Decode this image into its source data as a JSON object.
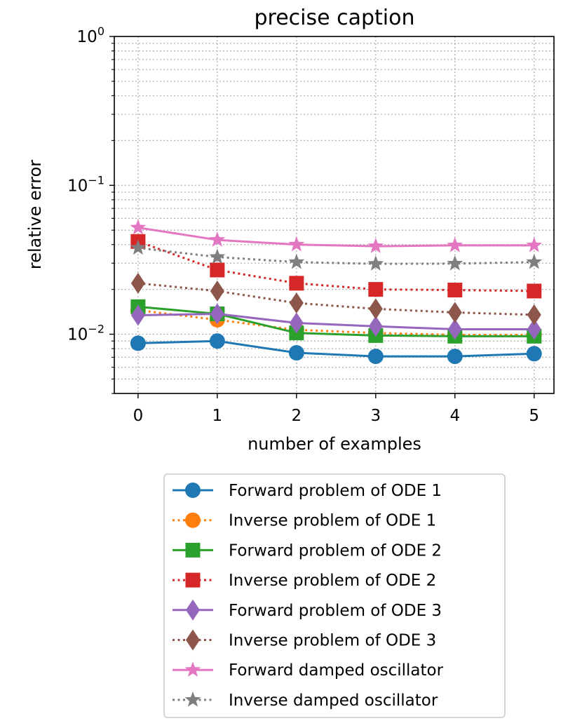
{
  "chart_data": {
    "type": "line",
    "title": "precise caption",
    "xlabel": "number of examples",
    "ylabel": "relative error",
    "yscale": "log",
    "ylim": [
      0.004,
      1.0
    ],
    "xlim": [
      -0.3,
      5.25
    ],
    "grid": true,
    "legend_position": "below",
    "x": [
      0,
      1,
      2,
      3,
      4,
      5
    ],
    "xticks": [
      "0",
      "1",
      "2",
      "3",
      "4",
      "5"
    ],
    "yticks": [
      {
        "base": "10",
        "exp": "0",
        "value": 1.0
      },
      {
        "base": "10",
        "exp": "−1",
        "value": 0.1
      },
      {
        "base": "10",
        "exp": "−2",
        "value": 0.01
      }
    ],
    "series": [
      {
        "name": "Forward problem of ODE 1",
        "color": "#1f77b4",
        "dash": "solid",
        "marker": "circle",
        "values": [
          0.0087,
          0.009,
          0.0075,
          0.0071,
          0.0071,
          0.0074
        ]
      },
      {
        "name": "Inverse problem of ODE 1",
        "color": "#ff7f0e",
        "dash": "dotted",
        "marker": "circle",
        "values": [
          0.0145,
          0.0125,
          0.0107,
          0.0102,
          0.0099,
          0.0099
        ]
      },
      {
        "name": "Forward problem of ODE 2",
        "color": "#2ca02c",
        "dash": "solid",
        "marker": "square",
        "values": [
          0.0153,
          0.0137,
          0.0102,
          0.0098,
          0.0097,
          0.0097
        ]
      },
      {
        "name": "Inverse problem of ODE 2",
        "color": "#d62728",
        "dash": "dotted",
        "marker": "square",
        "values": [
          0.042,
          0.027,
          0.022,
          0.02,
          0.0198,
          0.0195
        ]
      },
      {
        "name": "Forward problem of ODE 3",
        "color": "#9467bd",
        "dash": "solid",
        "marker": "diamond",
        "values": [
          0.0134,
          0.0137,
          0.0119,
          0.0113,
          0.0108,
          0.0108
        ]
      },
      {
        "name": "Inverse problem of ODE 3",
        "color": "#8c564b",
        "dash": "dotted",
        "marker": "diamond",
        "values": [
          0.022,
          0.0195,
          0.0162,
          0.0148,
          0.014,
          0.0135
        ]
      },
      {
        "name": "Forward damped oscillator",
        "color": "#e377c2",
        "dash": "solid",
        "marker": "star",
        "values": [
          0.052,
          0.043,
          0.04,
          0.039,
          0.0395,
          0.0395
        ]
      },
      {
        "name": "Inverse damped oscillator",
        "color": "#7f7f7f",
        "dash": "dotted",
        "marker": "star",
        "values": [
          0.038,
          0.033,
          0.0305,
          0.0297,
          0.0298,
          0.0305
        ]
      }
    ]
  }
}
